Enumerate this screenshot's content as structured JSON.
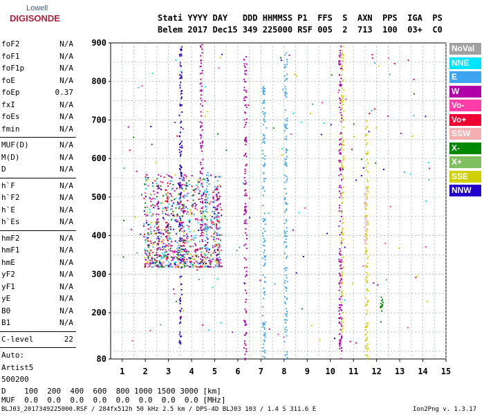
{
  "logo": {
    "line1": "Lowell",
    "line2": "DIGISONDE"
  },
  "header": {
    "line1": "Stati YYYY DAY   DDD HHMMSS P1  FFS  S  AXN  PPS  IGA  PS",
    "line2": "Belem 2017 Dec15 349 225000 RSF 005  2  713  100  03+  C0"
  },
  "params": {
    "g1": [
      {
        "k": "foF2",
        "v": "N/A"
      },
      {
        "k": "foF1",
        "v": "N/A"
      },
      {
        "k": "foF1p",
        "v": "N/A"
      },
      {
        "k": "foE",
        "v": "N/A"
      },
      {
        "k": "foEp",
        "v": "0.37"
      },
      {
        "k": "fxI",
        "v": "N/A"
      },
      {
        "k": "foEs",
        "v": "N/A"
      },
      {
        "k": "fmin",
        "v": "N/A"
      }
    ],
    "g2": [
      {
        "k": "MUF(D)",
        "v": "N/A"
      },
      {
        "k": "M(D)",
        "v": "N/A"
      },
      {
        "k": "D",
        "v": "N/A"
      }
    ],
    "g3": [
      {
        "k": "h`F",
        "v": "N/A"
      },
      {
        "k": "h`F2",
        "v": "N/A"
      },
      {
        "k": "h`E",
        "v": "N/A"
      },
      {
        "k": "h`Es",
        "v": "N/A"
      }
    ],
    "g4": [
      {
        "k": "hmF2",
        "v": "N/A"
      },
      {
        "k": "hmF1",
        "v": "N/A"
      },
      {
        "k": "hmE",
        "v": "N/A"
      },
      {
        "k": "yF2",
        "v": "N/A"
      },
      {
        "k": "yF1",
        "v": "N/A"
      },
      {
        "k": "yE",
        "v": "N/A"
      },
      {
        "k": "B0",
        "v": "N/A"
      },
      {
        "k": "B1",
        "v": "N/A"
      }
    ],
    "c_level": {
      "k": "C-level",
      "v": "22"
    },
    "auto": [
      "Auto:",
      "Artist5",
      "500200"
    ]
  },
  "legend": [
    {
      "label": "NoVal",
      "color": "#a0a0a0"
    },
    {
      "label": "NNE",
      "color": "#00e5ff"
    },
    {
      "label": "E",
      "color": "#3da5f0"
    },
    {
      "label": "W",
      "color": "#b000a8"
    },
    {
      "label": "Vo-",
      "color": "#ff3ca8"
    },
    {
      "label": "Vo+",
      "color": "#ee0033"
    },
    {
      "label": "SSW",
      "color": "#f4b0b0"
    },
    {
      "label": "X-",
      "color": "#008800"
    },
    {
      "label": "X+",
      "color": "#7fbf60"
    },
    {
      "label": "SSE",
      "color": "#d0d000"
    },
    {
      "label": "NNW",
      "color": "#2200cc"
    }
  ],
  "bottom": {
    "d_row": "D    100  200  400  600  800 1000 1500 3000 [km]",
    "muf_row": "MUF  0.0  0.0  0.0  0.0  0.0  0.0  0.0  0.0 [MHz]",
    "footer_left": "BLJ03_2017349225000.RSF / 284fx512h 50 kHz 2.5 km / DPS-4D BLJ03 103 / 1.4 S 311.6 E",
    "footer_right": "Ion2Png v. 1.3.17"
  },
  "chart_data": {
    "type": "scatter",
    "xlabel": "",
    "ylabel": "",
    "xlim": [
      0.5,
      15
    ],
    "ylim": [
      80,
      900
    ],
    "x_ticks": [
      1,
      2,
      3,
      4,
      5,
      6,
      7,
      8,
      9,
      10,
      11,
      12,
      13,
      14,
      15
    ],
    "y_ticks": [
      80,
      200,
      300,
      400,
      500,
      600,
      700,
      800,
      900
    ],
    "grid": true,
    "legend_position": "right",
    "columns": [
      {
        "x": 2.5,
        "y0": 320,
        "y1": 560,
        "series": "W"
      },
      {
        "x": 2.9,
        "y0": 320,
        "y1": 540,
        "series": "Vo+"
      },
      {
        "x": 3.5,
        "y0": 120,
        "y1": 900,
        "series": "NNW"
      },
      {
        "x": 3.6,
        "y0": 330,
        "y1": 560,
        "series": "W"
      },
      {
        "x": 4.4,
        "y0": 320,
        "y1": 900,
        "series": "W"
      },
      {
        "x": 4.6,
        "y0": 340,
        "y1": 560,
        "series": "E"
      },
      {
        "x": 5.1,
        "y0": 330,
        "y1": 530,
        "series": "W"
      },
      {
        "x": 6.3,
        "y0": 80,
        "y1": 870,
        "series": "W"
      },
      {
        "x": 7.1,
        "y0": 80,
        "y1": 800,
        "series": "E"
      },
      {
        "x": 8.05,
        "y0": 80,
        "y1": 880,
        "series": "E"
      },
      {
        "x": 10.4,
        "y0": 80,
        "y1": 900,
        "series": "W"
      },
      {
        "x": 10.5,
        "y0": 150,
        "y1": 900,
        "series": "SSE"
      },
      {
        "x": 11.55,
        "y0": 80,
        "y1": 700,
        "series": "SSE"
      },
      {
        "x": 11.5,
        "y0": 380,
        "y1": 530,
        "series": "SSW"
      },
      {
        "x": 12.2,
        "y0": 170,
        "y1": 250,
        "series": "X-"
      }
    ]
  }
}
